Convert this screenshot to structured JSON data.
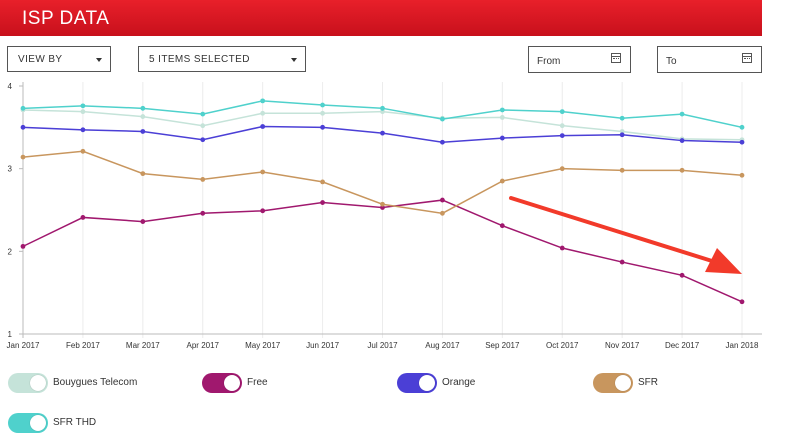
{
  "header": {
    "title": "ISP DATA"
  },
  "controls": {
    "view_by": "VIEW BY",
    "items_selected": "5 ITEMS SELECTED",
    "from": "From",
    "to": "To"
  },
  "chart_data": {
    "type": "line",
    "x": [
      "Jan 2017",
      "Feb 2017",
      "Mar 2017",
      "Apr 2017",
      "May 2017",
      "Jun 2017",
      "Jul 2017",
      "Aug 2017",
      "Sep 2017",
      "Oct 2017",
      "Nov 2017",
      "Dec 2017",
      "Jan 2018"
    ],
    "ylim": [
      1,
      4
    ],
    "yticks": [
      1,
      2,
      3,
      4
    ],
    "grid": "x-axis only",
    "legend": "bottom",
    "series": [
      {
        "name": "Bouygues Telecom",
        "color": "#c5e3d9",
        "values": [
          3.71,
          3.69,
          3.63,
          3.52,
          3.67,
          3.67,
          3.69,
          3.61,
          3.62,
          3.52,
          3.45,
          3.36,
          3.35
        ]
      },
      {
        "name": "Free",
        "color": "#a0186e",
        "values": [
          2.06,
          2.41,
          2.36,
          2.46,
          2.49,
          2.59,
          2.53,
          2.62,
          2.31,
          2.04,
          1.87,
          1.71,
          1.39
        ]
      },
      {
        "name": "Orange",
        "color": "#4b3fd6",
        "values": [
          3.5,
          3.47,
          3.45,
          3.35,
          3.51,
          3.5,
          3.43,
          3.32,
          3.37,
          3.4,
          3.41,
          3.34,
          3.32
        ]
      },
      {
        "name": "SFR",
        "color": "#c8965e",
        "values": [
          3.14,
          3.21,
          2.94,
          2.87,
          2.96,
          2.84,
          2.57,
          2.46,
          2.85,
          3.0,
          2.98,
          2.98,
          2.92
        ]
      },
      {
        "name": "SFR THD",
        "color": "#4fd1cc",
        "values": [
          3.73,
          3.76,
          3.73,
          3.66,
          3.82,
          3.77,
          3.73,
          3.6,
          3.71,
          3.69,
          3.61,
          3.66,
          3.5
        ]
      }
    ]
  },
  "annotation": {
    "arrow_color": "#f23a2a"
  }
}
